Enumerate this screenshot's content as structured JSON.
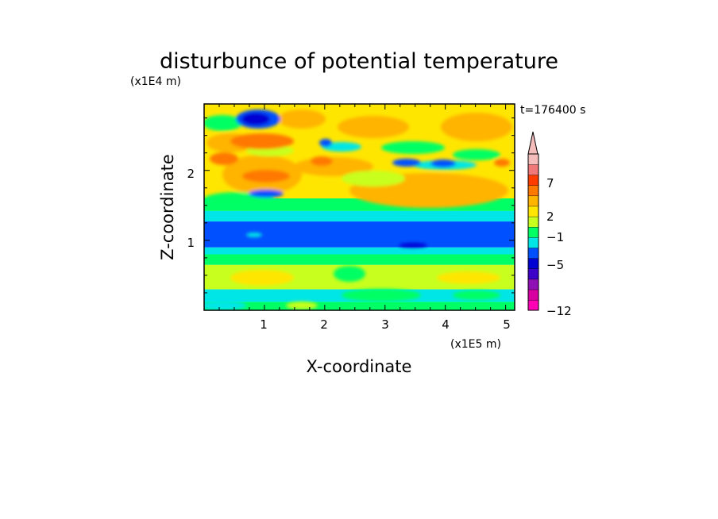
{
  "chart_data": {
    "type": "heatmap",
    "title": "disturbunce of potential temperature",
    "xlabel": "X-coordinate",
    "ylabel": "Z-coordinate",
    "x_unit": "(x1E5 m)",
    "y_unit": "(x1E4 m)",
    "time_label": "t=176400 s",
    "x_ticks": [
      "1",
      "2",
      "3",
      "4",
      "5"
    ],
    "y_ticks": [
      "1",
      "2"
    ],
    "xlim": [
      0,
      5.15
    ],
    "ylim": [
      0,
      2.95
    ],
    "colorbar": {
      "tick_labels": [
        "7",
        "2",
        "−1",
        "−5",
        "−12"
      ],
      "colors": [
        "#ff00b4",
        "#d800a0",
        "#8f10b4",
        "#3c00c8",
        "#0000d2",
        "#0050ff",
        "#00e6e6",
        "#00ff64",
        "#c8ff1e",
        "#ffe600",
        "#ffb400",
        "#ff7800",
        "#ff3c00",
        "#f07878",
        "#f5bcbc"
      ],
      "extend": "max"
    },
    "bands": [
      {
        "z_range": [
          0.0,
          0.12
        ],
        "value": 1,
        "color": "#00ff64"
      },
      {
        "z_range": [
          0.12,
          0.3
        ],
        "value": 0,
        "color": "#00e6e6"
      },
      {
        "z_range": [
          0.3,
          0.65
        ],
        "value": 2,
        "color": "#c8ff1e"
      },
      {
        "z_range": [
          0.65,
          0.8
        ],
        "value": 1,
        "color": "#00ff64"
      },
      {
        "z_range": [
          0.8,
          0.9
        ],
        "value": -1,
        "color": "#00e6e6"
      },
      {
        "z_range": [
          0.9,
          1.27
        ],
        "value": -4,
        "color": "#0050ff"
      },
      {
        "z_range": [
          1.27,
          1.42
        ],
        "value": -1,
        "color": "#00e6e6"
      },
      {
        "z_range": [
          1.42,
          1.6
        ],
        "value": 1,
        "color": "#00ff64"
      },
      {
        "z_range": [
          1.6,
          2.95
        ],
        "value": 3,
        "color": "#ffe600"
      }
    ],
    "features": [
      {
        "x": 1.0,
        "z": 2.75,
        "value": -5,
        "color": "#0000d2"
      },
      {
        "x": 0.3,
        "z": 2.2,
        "value": 7,
        "color": "#ff7800"
      },
      {
        "x": 1.0,
        "z": 2.05,
        "value": 7,
        "color": "#ff7800"
      },
      {
        "x": 1.0,
        "z": 1.7,
        "value": -4,
        "color": "#0050ff"
      },
      {
        "x": 3.7,
        "z": 2.05,
        "value": -4,
        "color": "#0050ff"
      },
      {
        "x": 3.5,
        "z": 1.9,
        "value": 4,
        "color": "#ffb400"
      },
      {
        "x": 3.5,
        "z": 0.97,
        "value": -5,
        "color": "#0000d2"
      }
    ]
  }
}
